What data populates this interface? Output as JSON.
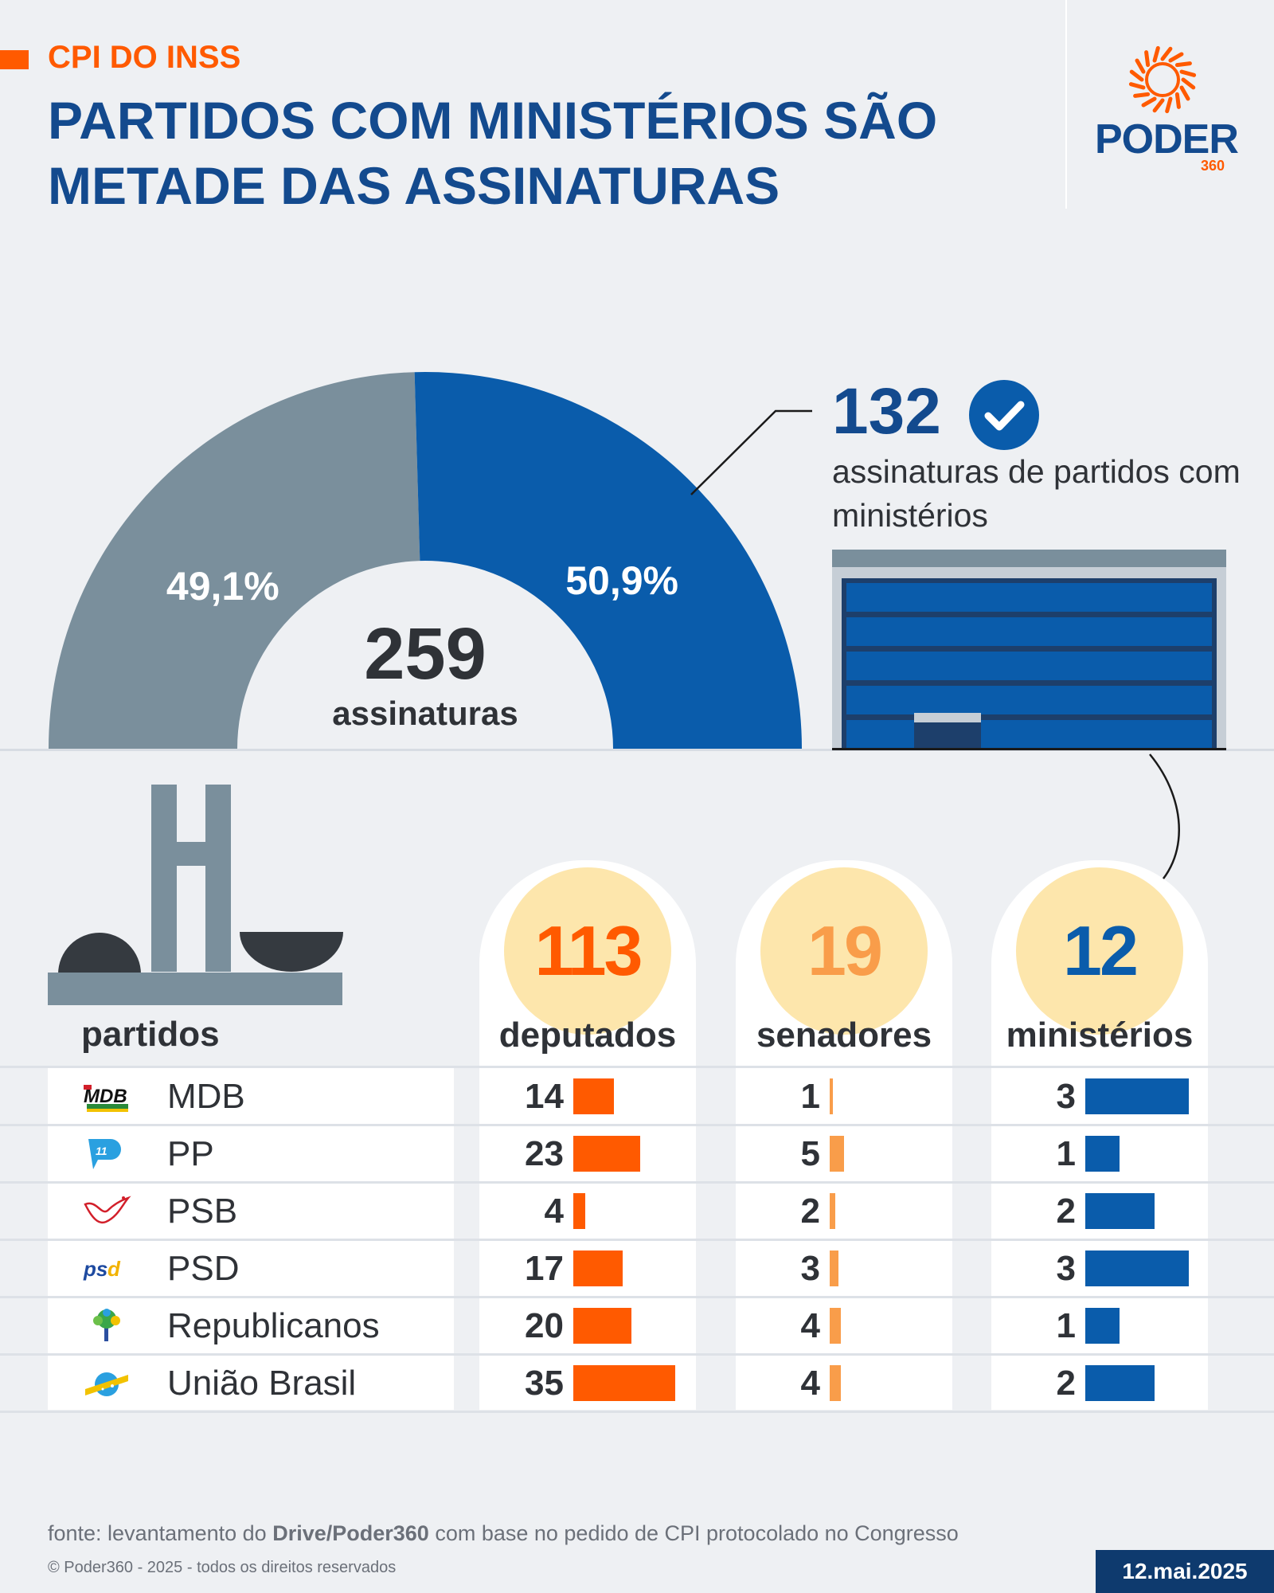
{
  "header": {
    "kicker": "CPI DO INSS",
    "title": "PARTIDOS COM MINISTÉRIOS SÃO METADE DAS ASSINATURAS"
  },
  "logo": {
    "word": "PODER",
    "sub": "360"
  },
  "colors": {
    "orange": "#ff5a00",
    "light_orange": "#f99d4a",
    "blue": "#0a5cab",
    "navy": "#134a8e",
    "gray": "#7a8f9c",
    "cream": "#fde6ac"
  },
  "chart_data": [
    {
      "type": "pie",
      "variant": "semi-donut",
      "slices": [
        {
          "label": "49,1%",
          "value": 49.1,
          "color": "#7a8f9c"
        },
        {
          "label": "50,9%",
          "value": 50.9,
          "color": "#0a5cab"
        }
      ],
      "center_value": "259",
      "center_label": "assinaturas"
    },
    {
      "type": "bar",
      "orientation": "horizontal",
      "categories": [
        "MDB",
        "PP",
        "PSB",
        "PSD",
        "Republicanos",
        "União Brasil"
      ],
      "series": [
        {
          "name": "deputados",
          "values": [
            14,
            23,
            4,
            17,
            20,
            35
          ],
          "color": "#ff5a00"
        },
        {
          "name": "senadores",
          "values": [
            1,
            5,
            2,
            3,
            4,
            4
          ],
          "color": "#f99d4a"
        },
        {
          "name": "ministérios",
          "values": [
            3,
            1,
            2,
            3,
            1,
            2
          ],
          "color": "#0a5cab"
        }
      ]
    }
  ],
  "highlight": {
    "value": "132",
    "desc": "assinaturas de partidos com ministérios"
  },
  "table": {
    "col_parties": "partidos",
    "columns": [
      {
        "key": "deputados",
        "total": "113",
        "label": "deputados",
        "total_color": "#ff5a00"
      },
      {
        "key": "senadores",
        "total": "19",
        "label": "senadores",
        "total_color": "#f99d4a"
      },
      {
        "key": "ministerios",
        "total": "12",
        "label": "ministérios",
        "total_color": "#0a5cab"
      }
    ],
    "rows": [
      {
        "party": "MDB",
        "icon": "mdb-logo-icon",
        "deputados": "14",
        "senadores": "1",
        "ministerios": "3"
      },
      {
        "party": "PP",
        "icon": "pp-logo-icon",
        "deputados": "23",
        "senadores": "5",
        "ministerios": "1"
      },
      {
        "party": "PSB",
        "icon": "psb-dove-icon",
        "deputados": "4",
        "senadores": "2",
        "ministerios": "2"
      },
      {
        "party": "PSD",
        "icon": "psd-logo-icon",
        "deputados": "17",
        "senadores": "3",
        "ministerios": "3"
      },
      {
        "party": "Republicanos",
        "icon": "republicanos-tree-icon",
        "deputados": "20",
        "senadores": "4",
        "ministerios": "1"
      },
      {
        "party": "União Brasil",
        "icon": "uniao-brasil-logo-icon",
        "deputados": "35",
        "senadores": "4",
        "ministerios": "2"
      }
    ]
  },
  "footer": {
    "source_prefix": "fonte: levantamento do ",
    "source_bold": "Drive/Poder360",
    "source_suffix": " com base no pedido de CPI protocolado no Congresso",
    "copyright": "© Poder360 - 2025 - todos os direitos reservados",
    "date": "12.mai.2025"
  }
}
